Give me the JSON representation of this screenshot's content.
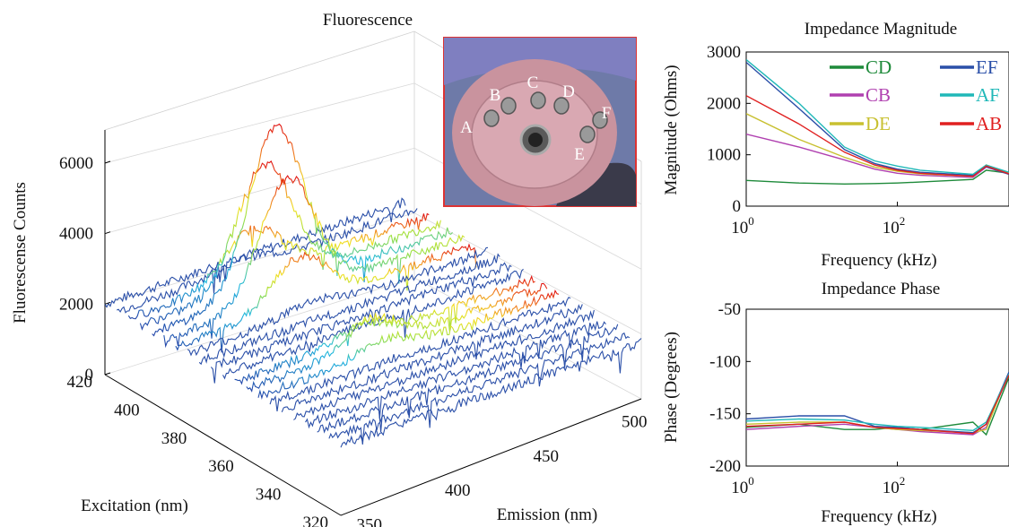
{
  "chart_data": [
    {
      "type": "surface-3d",
      "title": "Fluorescence",
      "xlabel": "Emission (nm)",
      "ylabel": "Excitation (nm)",
      "zlabel": "Fluorescense Counts",
      "x_ticks": [
        "350",
        "400",
        "450",
        "500"
      ],
      "y_ticks": [
        "420",
        "400",
        "380",
        "360",
        "340",
        "320"
      ],
      "z_ticks": [
        "0",
        "2000",
        "4000",
        "6000"
      ],
      "xlim": [
        340,
        510
      ],
      "ylim": [
        320,
        420
      ],
      "zlim": [
        0,
        7000
      ],
      "grid": true,
      "colormap": "jet",
      "peak": {
        "excitation": 400,
        "emission": 410,
        "counts": 6600
      },
      "secondary_peak": {
        "excitation": 360,
        "emission": 410,
        "counts": 2800
      },
      "baseline_counts": 2000,
      "inset_photo": {
        "electrode_labels": [
          "A",
          "B",
          "C",
          "D",
          "E",
          "F"
        ]
      }
    },
    {
      "type": "line",
      "title": "Impedance Magnitude",
      "xlabel": "Frequency (kHz)",
      "ylabel": "Magnitude (Ohms)",
      "xscale": "log",
      "x_ticks": [
        {
          "base": "10",
          "exp": "0"
        },
        {
          "base": "10",
          "exp": "2"
        }
      ],
      "y_ticks": [
        "0",
        "1000",
        "2000",
        "3000"
      ],
      "ylim": [
        0,
        3000
      ],
      "xlim": [
        1,
        3000
      ],
      "legend": "top-right",
      "x": [
        1,
        5,
        20,
        50,
        100,
        200,
        1000,
        1500,
        3000
      ],
      "series": [
        {
          "name": "CD",
          "color": "#1e8a3a",
          "values": [
            500,
            450,
            430,
            440,
            450,
            470,
            520,
            700,
            640
          ]
        },
        {
          "name": "CB",
          "color": "#b040b0",
          "values": [
            1400,
            1150,
            900,
            720,
            640,
            600,
            560,
            760,
            620
          ]
        },
        {
          "name": "DE",
          "color": "#c8c030",
          "values": [
            1800,
            1300,
            950,
            760,
            680,
            630,
            580,
            800,
            640
          ]
        },
        {
          "name": "EF",
          "color": "#2a4fa8",
          "values": [
            2800,
            1900,
            1100,
            830,
            720,
            660,
            600,
            770,
            620
          ]
        },
        {
          "name": "AF",
          "color": "#20b8b8",
          "values": [
            2850,
            2000,
            1150,
            880,
            780,
            700,
            620,
            800,
            660
          ]
        },
        {
          "name": "AB",
          "color": "#e02020",
          "values": [
            2150,
            1600,
            1050,
            800,
            700,
            640,
            580,
            780,
            630
          ]
        }
      ]
    },
    {
      "type": "line",
      "title": "Impedance Phase",
      "xlabel": "Frequency (kHz)",
      "ylabel": "Phase (Degrees)",
      "xscale": "log",
      "x_ticks": [
        {
          "base": "10",
          "exp": "0"
        },
        {
          "base": "10",
          "exp": "2"
        }
      ],
      "y_ticks": [
        "-50",
        "-100",
        "-150",
        "-200"
      ],
      "ylim": [
        -200,
        -50
      ],
      "xlim": [
        1,
        3000
      ],
      "x": [
        1,
        5,
        20,
        50,
        100,
        200,
        1000,
        1500,
        3000
      ],
      "series": [
        {
          "name": "CD",
          "color": "#1e8a3a",
          "values": [
            -163,
            -160,
            -165,
            -165,
            -163,
            -165,
            -158,
            -170,
            -115
          ]
        },
        {
          "name": "CB",
          "color": "#b040b0",
          "values": [
            -165,
            -162,
            -160,
            -163,
            -165,
            -167,
            -170,
            -163,
            -112
          ]
        },
        {
          "name": "DE",
          "color": "#c8c030",
          "values": [
            -160,
            -158,
            -158,
            -163,
            -165,
            -166,
            -168,
            -165,
            -110
          ]
        },
        {
          "name": "EF",
          "color": "#2a4fa8",
          "values": [
            -155,
            -152,
            -152,
            -162,
            -163,
            -165,
            -168,
            -160,
            -110
          ]
        },
        {
          "name": "AF",
          "color": "#20b8b8",
          "values": [
            -157,
            -155,
            -156,
            -160,
            -162,
            -163,
            -166,
            -158,
            -112
          ]
        },
        {
          "name": "AB",
          "color": "#e02020",
          "values": [
            -162,
            -160,
            -158,
            -163,
            -164,
            -165,
            -169,
            -160,
            -113
          ]
        }
      ]
    }
  ]
}
